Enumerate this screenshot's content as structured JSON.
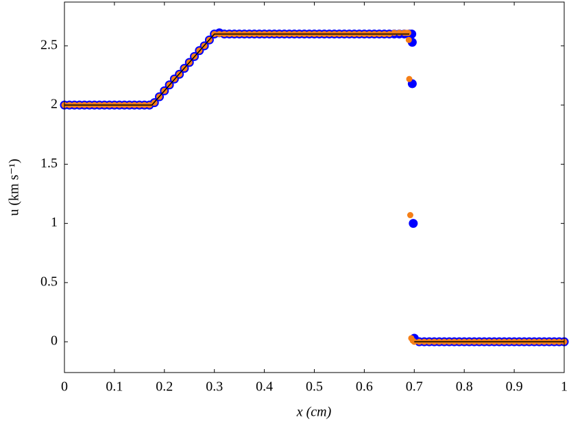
{
  "chart_data": {
    "type": "scatter",
    "xlabel": "x (cm)",
    "ylabel": "u (km s⁻¹)",
    "xlim": [
      0,
      1
    ],
    "ylim": [
      -0.26,
      2.87
    ],
    "xticks": [
      0,
      0.1,
      0.2,
      0.3,
      0.4,
      0.5,
      0.6,
      0.7,
      0.8,
      0.9,
      1
    ],
    "yticks": [
      0,
      0.5,
      1,
      1.5,
      2,
      2.5
    ],
    "series": [
      {
        "type": "scatter",
        "color": "#0000ff",
        "x": [
          0,
          0.01,
          0.02,
          0.03,
          0.04,
          0.05,
          0.06,
          0.07,
          0.08,
          0.09,
          0.1,
          0.11,
          0.12,
          0.13,
          0.14,
          0.15,
          0.16,
          0.17,
          0.18,
          0.19,
          0.2,
          0.21,
          0.22,
          0.23,
          0.24,
          0.25,
          0.26,
          0.27,
          0.28,
          0.29,
          0.3,
          0.31,
          0.32,
          0.33,
          0.34,
          0.35,
          0.36,
          0.37,
          0.38,
          0.39,
          0.4,
          0.41,
          0.42,
          0.43,
          0.44,
          0.45,
          0.46,
          0.47,
          0.48,
          0.49,
          0.5,
          0.51,
          0.52,
          0.53,
          0.54,
          0.55,
          0.56,
          0.57,
          0.58,
          0.59,
          0.6,
          0.61,
          0.62,
          0.63,
          0.64,
          0.65,
          0.66,
          0.67,
          0.68,
          0.69,
          0.695,
          0.696,
          0.696,
          0.698,
          0.7,
          0.71,
          0.72,
          0.73,
          0.74,
          0.75,
          0.76,
          0.77,
          0.78,
          0.79,
          0.8,
          0.81,
          0.82,
          0.83,
          0.84,
          0.85,
          0.86,
          0.87,
          0.88,
          0.89,
          0.9,
          0.91,
          0.92,
          0.93,
          0.94,
          0.95,
          0.96,
          0.97,
          0.98,
          0.99,
          1
        ],
        "values": [
          2,
          2,
          2,
          2,
          2,
          2,
          2,
          2,
          2,
          2,
          2,
          2,
          2,
          2,
          2,
          2,
          2,
          2,
          2.02,
          2.07,
          2.12,
          2.17,
          2.22,
          2.26,
          2.31,
          2.36,
          2.41,
          2.46,
          2.5,
          2.55,
          2.6,
          2.61,
          2.6,
          2.6,
          2.6,
          2.6,
          2.6,
          2.6,
          2.6,
          2.6,
          2.6,
          2.6,
          2.6,
          2.6,
          2.6,
          2.6,
          2.6,
          2.6,
          2.6,
          2.6,
          2.6,
          2.6,
          2.6,
          2.6,
          2.6,
          2.6,
          2.6,
          2.6,
          2.6,
          2.6,
          2.6,
          2.6,
          2.6,
          2.6,
          2.6,
          2.6,
          2.6,
          2.6,
          2.6,
          2.6,
          2.6,
          2.53,
          2.18,
          1.0,
          0.03,
          0,
          0,
          0,
          0,
          0,
          0,
          0,
          0,
          0,
          0,
          0,
          0,
          0,
          0,
          0,
          0,
          0,
          0,
          0,
          0,
          0,
          0,
          0,
          0,
          0,
          0,
          0,
          0,
          0,
          0
        ]
      },
      {
        "type": "scatter",
        "color": "#f57f17",
        "x": [
          0,
          0.01,
          0.02,
          0.03,
          0.04,
          0.05,
          0.06,
          0.07,
          0.08,
          0.09,
          0.1,
          0.11,
          0.12,
          0.13,
          0.14,
          0.15,
          0.16,
          0.17,
          0.18,
          0.19,
          0.2,
          0.21,
          0.22,
          0.23,
          0.24,
          0.25,
          0.26,
          0.27,
          0.28,
          0.29,
          0.3,
          0.31,
          0.32,
          0.33,
          0.34,
          0.35,
          0.36,
          0.37,
          0.38,
          0.39,
          0.4,
          0.41,
          0.42,
          0.43,
          0.44,
          0.45,
          0.46,
          0.47,
          0.48,
          0.49,
          0.5,
          0.51,
          0.52,
          0.53,
          0.54,
          0.55,
          0.56,
          0.57,
          0.58,
          0.59,
          0.6,
          0.61,
          0.62,
          0.63,
          0.64,
          0.65,
          0.66,
          0.67,
          0.68,
          0.685,
          0.688,
          0.689,
          0.69,
          0.692,
          0.694,
          0.697,
          0.7,
          0.71,
          0.72,
          0.73,
          0.74,
          0.75,
          0.76,
          0.77,
          0.78,
          0.79,
          0.8,
          0.81,
          0.82,
          0.83,
          0.84,
          0.85,
          0.86,
          0.87,
          0.88,
          0.89,
          0.9,
          0.91,
          0.92,
          0.93,
          0.94,
          0.95,
          0.96,
          0.97,
          0.98,
          0.99,
          1
        ],
        "values": [
          2,
          2,
          2,
          2,
          2,
          2,
          2,
          2,
          2,
          2,
          2,
          2,
          2,
          2,
          2,
          2,
          2,
          2,
          2.02,
          2.07,
          2.12,
          2.17,
          2.22,
          2.26,
          2.31,
          2.36,
          2.41,
          2.46,
          2.5,
          2.55,
          2.6,
          2.6,
          2.6,
          2.6,
          2.6,
          2.6,
          2.6,
          2.6,
          2.6,
          2.6,
          2.6,
          2.6,
          2.6,
          2.6,
          2.6,
          2.6,
          2.6,
          2.6,
          2.6,
          2.6,
          2.6,
          2.6,
          2.6,
          2.6,
          2.6,
          2.6,
          2.6,
          2.6,
          2.6,
          2.6,
          2.6,
          2.6,
          2.6,
          2.6,
          2.6,
          2.6,
          2.61,
          2.61,
          2.61,
          2.61,
          2.61,
          2.55,
          2.22,
          1.07,
          0.03,
          0.01,
          0,
          0,
          0,
          0,
          0,
          0,
          0,
          0,
          0,
          0,
          0,
          0,
          0,
          0,
          0,
          0,
          0,
          0,
          0,
          0,
          0,
          0,
          0,
          0,
          0,
          0,
          0,
          0,
          0,
          0,
          0
        ]
      },
      {
        "type": "line",
        "color": "#000000",
        "x": [
          0,
          0.175,
          0.3,
          0.69,
          null,
          0.7,
          1
        ],
        "values": [
          2,
          2,
          2.6,
          2.6,
          null,
          0,
          0
        ]
      }
    ]
  }
}
